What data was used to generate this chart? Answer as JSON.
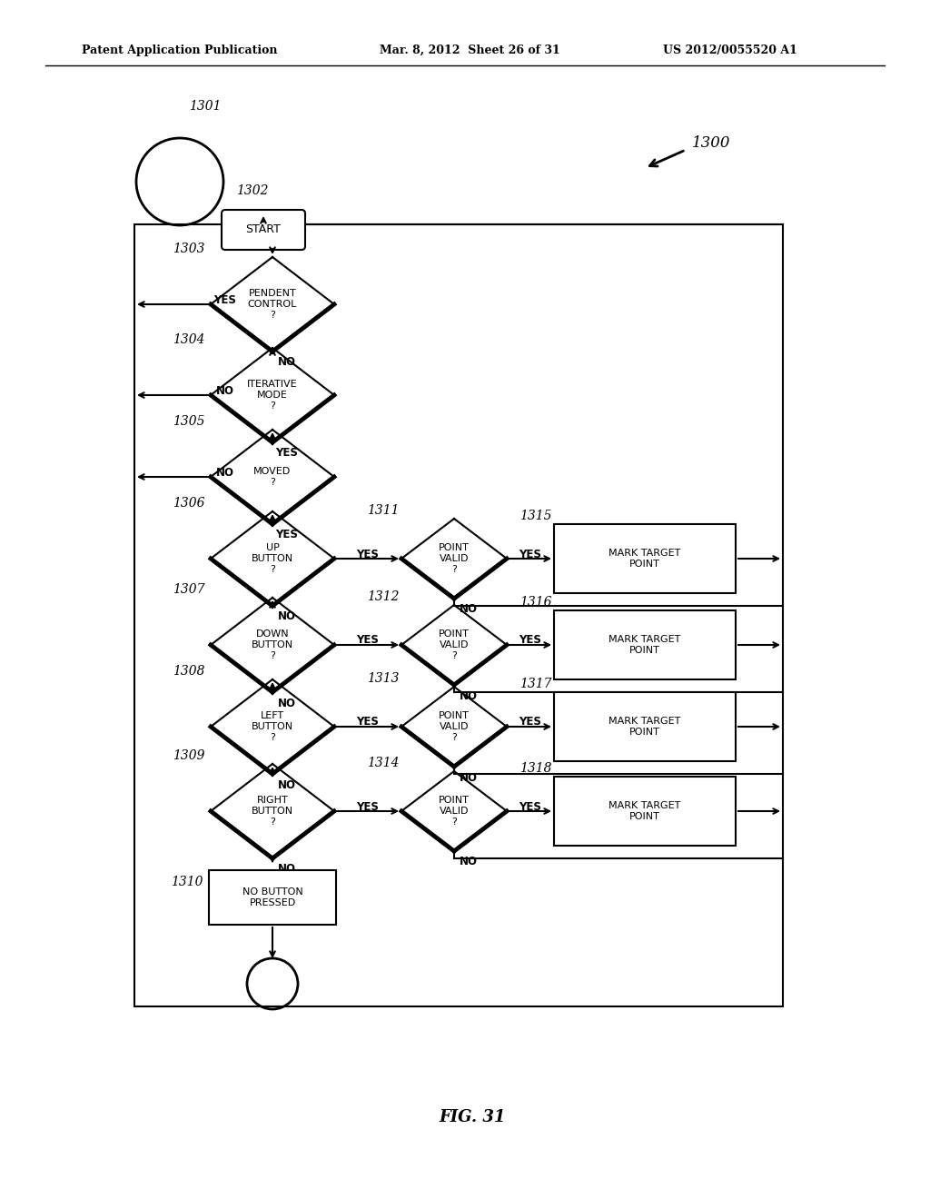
{
  "bg_color": "#ffffff",
  "header_left": "Patent Application Publication",
  "header_mid": "Mar. 8, 2012  Sheet 26 of 31",
  "header_right": "US 2012/0055520 A1",
  "fig_label": "FIG. 31"
}
